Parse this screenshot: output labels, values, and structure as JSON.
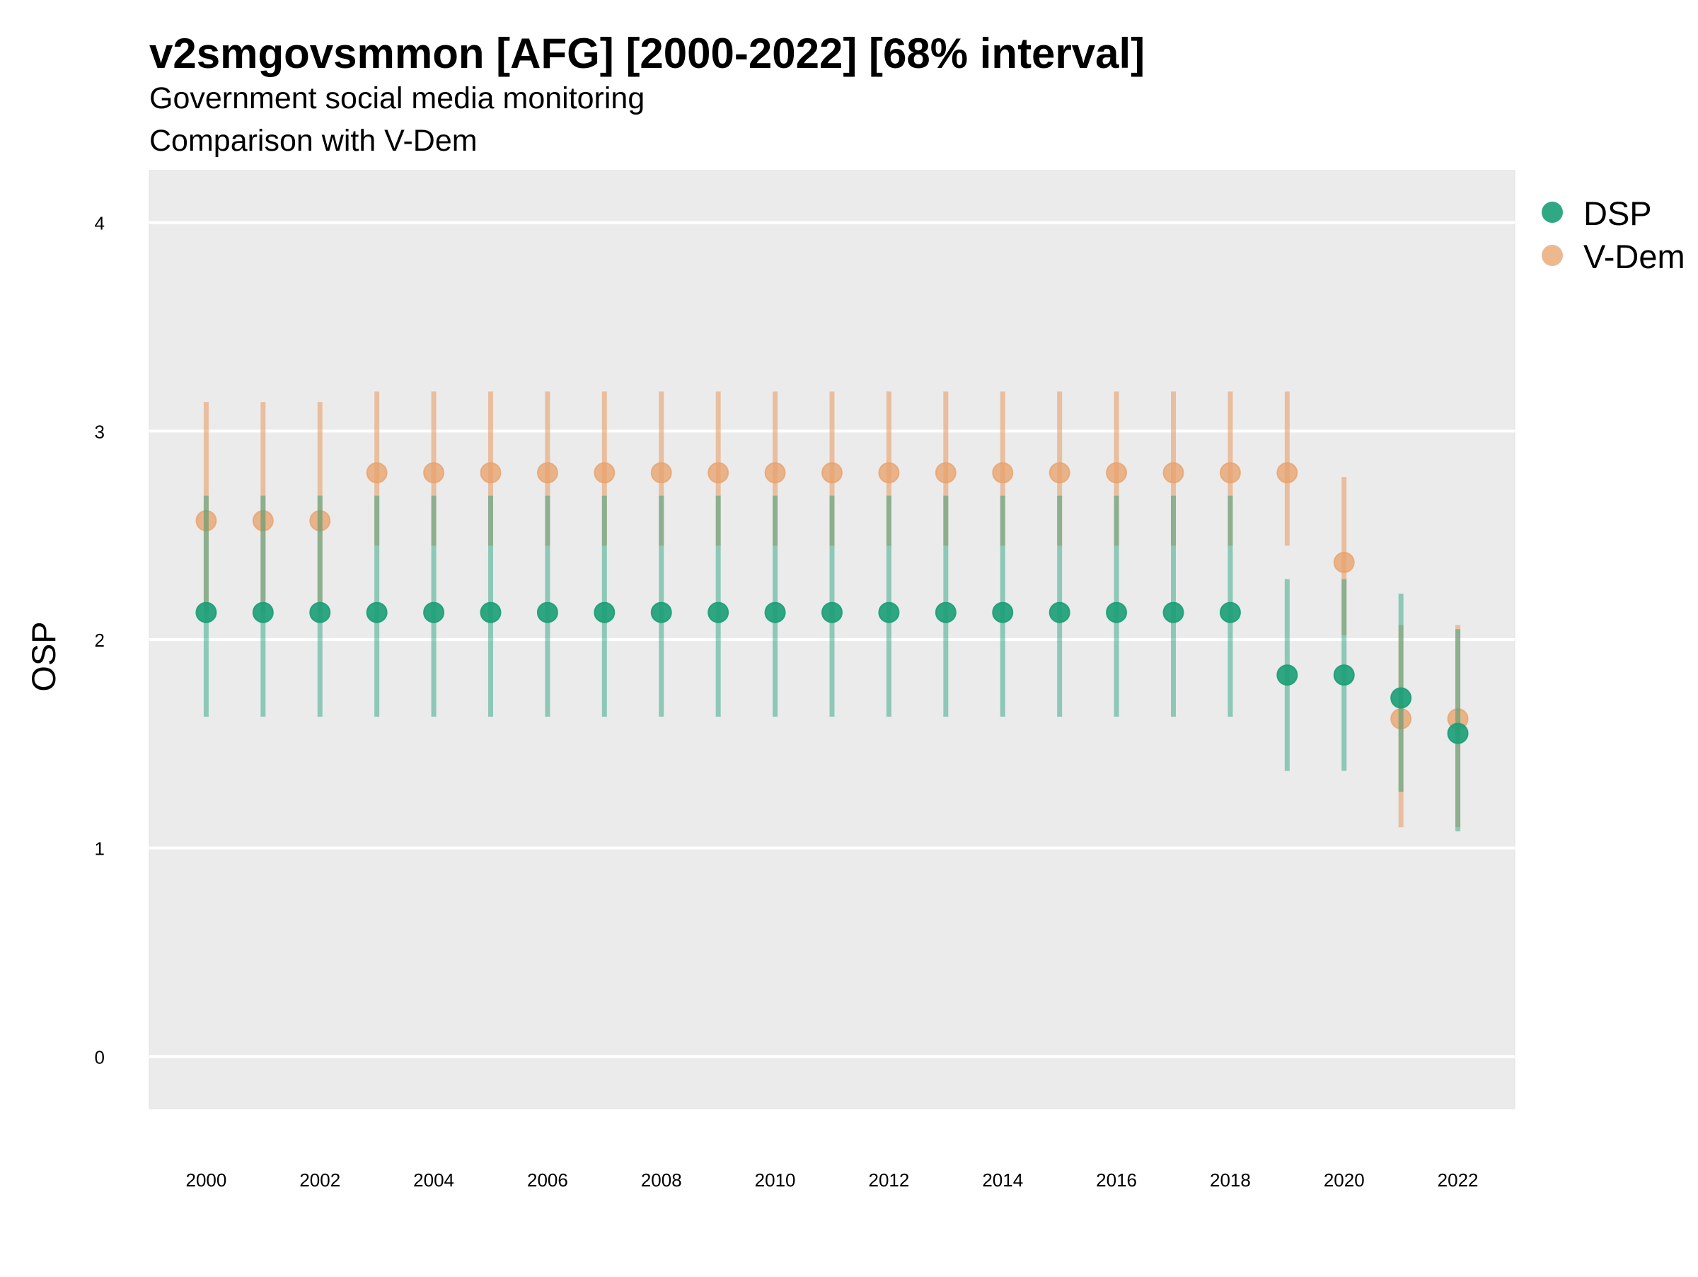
{
  "chart_data": {
    "type": "scatter",
    "title": "v2smgovsmmon [AFG] [2000-2022] [68% interval]",
    "subtitle": "Government social media monitoring",
    "caption": "Comparison with V-Dem",
    "xlabel": "",
    "ylabel": "OSP",
    "xlim": [
      1999,
      2023
    ],
    "ylim": [
      -0.25,
      4.25
    ],
    "x_ticks": [
      2000,
      2002,
      2004,
      2006,
      2008,
      2010,
      2012,
      2014,
      2016,
      2018,
      2020,
      2022
    ],
    "x_tick_labels": [
      "2000",
      "2002",
      "2004",
      "2006",
      "2008",
      "2010",
      "2012",
      "2014",
      "2016",
      "2018",
      "2020",
      "2022"
    ],
    "y_ticks": [
      0,
      1,
      2,
      3,
      4
    ],
    "y_tick_labels": [
      "0",
      "1",
      "2",
      "3",
      "4"
    ],
    "grid": true,
    "legend_position": "right",
    "colors": {
      "panel_background": "#EBEBEB",
      "grid": "#FFFFFF",
      "dsp": "#1B9E77",
      "vdem": "#E8A06A"
    },
    "series": [
      {
        "name": "DSP",
        "color": "#1B9E77",
        "x": [
          2000,
          2001,
          2002,
          2003,
          2004,
          2005,
          2006,
          2007,
          2008,
          2009,
          2010,
          2011,
          2012,
          2013,
          2014,
          2015,
          2016,
          2017,
          2018,
          2019,
          2020,
          2021,
          2022
        ],
        "y": [
          2.13,
          2.13,
          2.13,
          2.13,
          2.13,
          2.13,
          2.13,
          2.13,
          2.13,
          2.13,
          2.13,
          2.13,
          2.13,
          2.13,
          2.13,
          2.13,
          2.13,
          2.13,
          2.13,
          1.83,
          1.83,
          1.72,
          1.55
        ],
        "lower": [
          1.63,
          1.63,
          1.63,
          1.63,
          1.63,
          1.63,
          1.63,
          1.63,
          1.63,
          1.63,
          1.63,
          1.63,
          1.63,
          1.63,
          1.63,
          1.63,
          1.63,
          1.63,
          1.63,
          1.37,
          1.37,
          1.27,
          1.08
        ],
        "upper": [
          2.69,
          2.69,
          2.69,
          2.69,
          2.69,
          2.69,
          2.69,
          2.69,
          2.69,
          2.69,
          2.69,
          2.69,
          2.69,
          2.69,
          2.69,
          2.69,
          2.69,
          2.69,
          2.69,
          2.29,
          2.29,
          2.22,
          2.05
        ]
      },
      {
        "name": "V-Dem",
        "color": "#E8A06A",
        "x": [
          2000,
          2001,
          2002,
          2003,
          2004,
          2005,
          2006,
          2007,
          2008,
          2009,
          2010,
          2011,
          2012,
          2013,
          2014,
          2015,
          2016,
          2017,
          2018,
          2019,
          2020,
          2021,
          2022
        ],
        "y": [
          2.57,
          2.57,
          2.57,
          2.8,
          2.8,
          2.8,
          2.8,
          2.8,
          2.8,
          2.8,
          2.8,
          2.8,
          2.8,
          2.8,
          2.8,
          2.8,
          2.8,
          2.8,
          2.8,
          2.8,
          2.37,
          1.62,
          1.62
        ],
        "lower": [
          2.13,
          2.13,
          2.13,
          2.45,
          2.45,
          2.45,
          2.45,
          2.45,
          2.45,
          2.45,
          2.45,
          2.45,
          2.45,
          2.45,
          2.45,
          2.45,
          2.45,
          2.45,
          2.45,
          2.45,
          2.02,
          1.1,
          1.1
        ],
        "upper": [
          3.14,
          3.14,
          3.14,
          3.19,
          3.19,
          3.19,
          3.19,
          3.19,
          3.19,
          3.19,
          3.19,
          3.19,
          3.19,
          3.19,
          3.19,
          3.19,
          3.19,
          3.19,
          3.19,
          3.19,
          2.78,
          2.07,
          2.07
        ]
      }
    ]
  }
}
